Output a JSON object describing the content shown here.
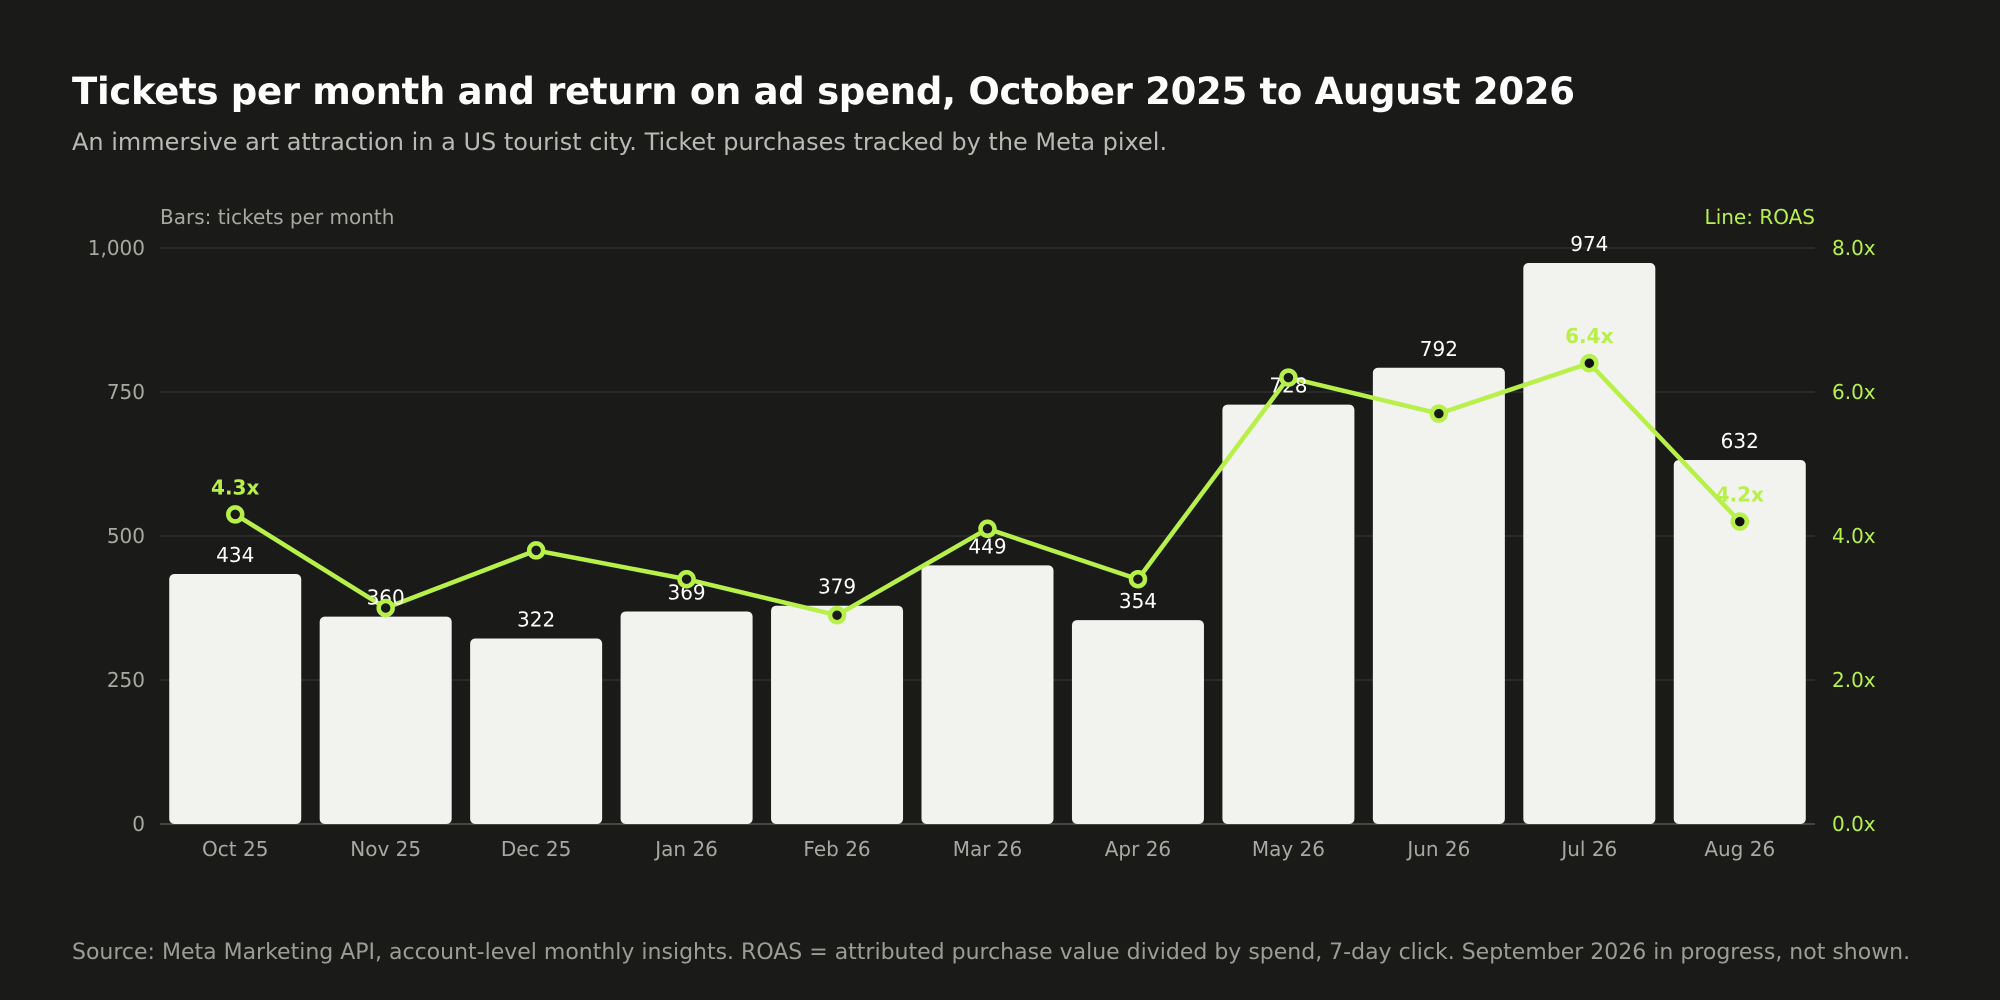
{
  "title": "Tickets per month and return on ad spend, October 2025 to August 2026",
  "subtitle": "An immersive art attraction in a US tourist city. Ticket purchases tracked by the Meta pixel.",
  "footer": "Source: Meta Marketing API, account-level monthly insights. ROAS = attributed purchase value divided by spend, 7-day click. September 2026 in progress, not shown.",
  "colors": {
    "background": "#1a1a18",
    "bar": "#f2f2ee",
    "line": "#b8f04a",
    "grid": "#3a3a37",
    "axis_text": "#a8a8a3"
  },
  "chart_data": {
    "type": "bar",
    "categories": [
      "Oct 25",
      "Nov 25",
      "Dec 25",
      "Jan 26",
      "Feb 26",
      "Mar 26",
      "Apr 26",
      "May 26",
      "Jun 26",
      "Jul 26",
      "Aug 26"
    ],
    "left_axis_label": "Bars: tickets per month",
    "right_axis_label": "Line: ROAS",
    "ylim": [
      0,
      1000
    ],
    "y_ticks": [
      0,
      250,
      500,
      750,
      1000
    ],
    "y_tick_labels": [
      "0",
      "250",
      "500",
      "750",
      "1,000"
    ],
    "y2lim": [
      0,
      8
    ],
    "y2_ticks": [
      0,
      2,
      4,
      6,
      8
    ],
    "y2_tick_labels": [
      "0.0x",
      "2.0x",
      "4.0x",
      "6.0x",
      "8.0x"
    ],
    "grid": true,
    "series": [
      {
        "type": "bar",
        "axis": "left",
        "values": [
          434,
          360,
          322,
          369,
          379,
          449,
          354,
          728,
          792,
          974,
          632
        ],
        "labels": [
          "434",
          "360",
          "322",
          "369",
          "379",
          "449",
          "354",
          "728",
          "792",
          "974",
          "632"
        ]
      },
      {
        "type": "line",
        "axis": "right",
        "values": [
          4.3,
          3.0,
          3.8,
          3.4,
          2.9,
          4.1,
          3.4,
          6.2,
          5.7,
          6.4,
          4.2
        ],
        "annotations": [
          {
            "index": 0,
            "text": "4.3x"
          },
          {
            "index": 9,
            "text": "6.4x"
          },
          {
            "index": 10,
            "text": "4.2x"
          }
        ],
        "filled_markers": [
          9,
          10
        ]
      }
    ]
  }
}
